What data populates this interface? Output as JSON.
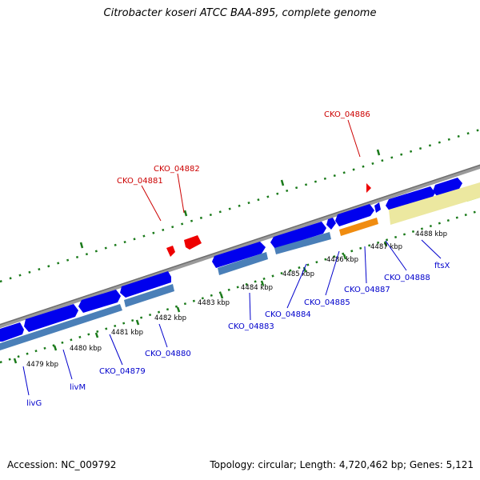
{
  "title": "Citrobacter koseri ATCC BAA-895, complete genome",
  "accession": "Accession: NC_009792",
  "summary": "Topology: circular; Length: 4,720,462 bp; Genes: 5,121",
  "colors": {
    "backbone": "#808080",
    "forward_gene": "#0000ee",
    "reverse_gene": "#4a7fb8",
    "red_feature": "#ee0000",
    "orange_feature": "#f08c10",
    "yellow_feature": "#ece8a0",
    "green_feature": "#90e020",
    "tick": "#1a7a1a",
    "label_blue": "#0000cc",
    "label_red": "#cc0000"
  },
  "kbp_labels": [
    "4479 kbp",
    "4480 kbp",
    "4481 kbp",
    "4482 kbp",
    "4483 kbp",
    "4484 kbp",
    "4485 kbp",
    "4486 kbp",
    "4487 kbp",
    "4488 kbp"
  ],
  "gene_labels_blue": [
    "livG",
    "livM",
    "CKO_04879",
    "CKO_04880",
    "CKO_04883",
    "CKO_04884",
    "CKO_04885",
    "CKO_04887",
    "CKO_04888",
    "ftsX"
  ],
  "gene_labels_red": [
    "CKO_04881",
    "CKO_04882",
    "CKO_04886"
  ]
}
